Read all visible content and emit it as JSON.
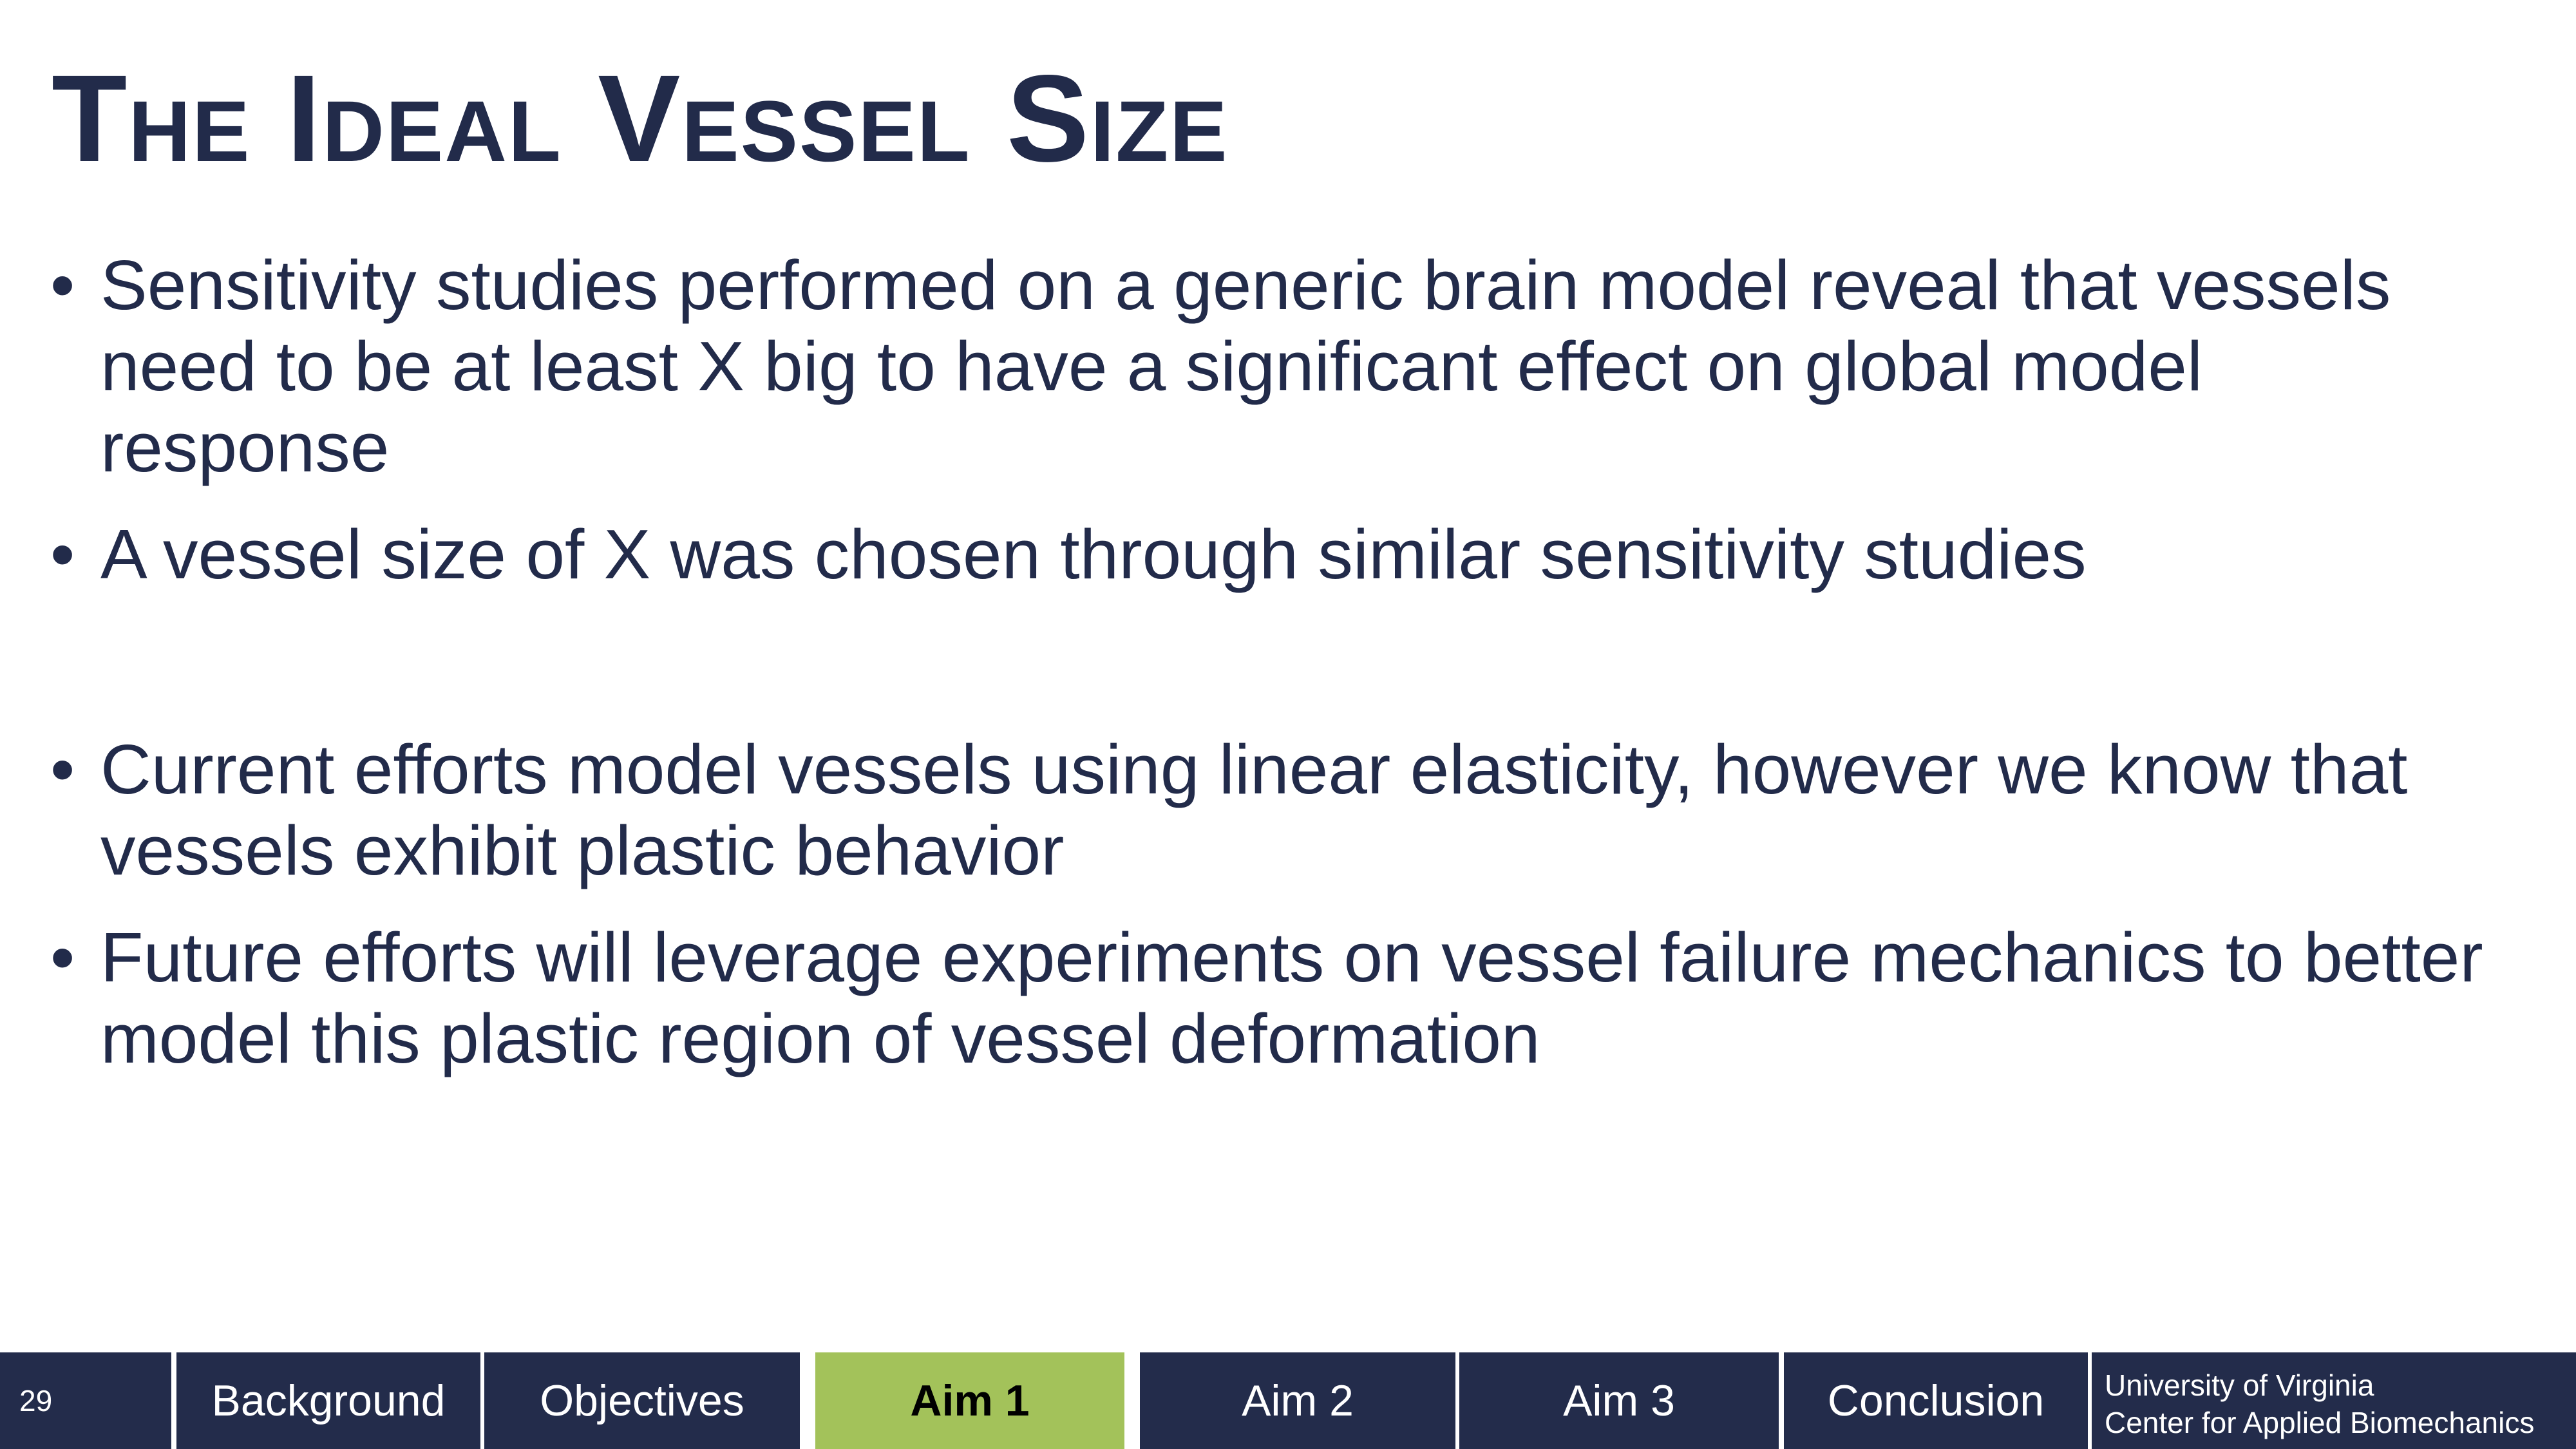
{
  "slide": {
    "title": "The Ideal Vessel Size",
    "bullet_char": "•",
    "bullets": [
      "Sensitivity studies performed on a generic brain model reveal that vessels need to be at least X big to have a significant effect on global model response",
      "A vessel size of X was chosen through similar sensitivity studies",
      "Current efforts model vessels using linear elasticity, however we know that vessels exhibit plastic behavior",
      "Future efforts will leverage experiments on vessel failure mechanics to better model this plastic region of vessel deformation"
    ]
  },
  "footer": {
    "slide_number": "29",
    "nav": [
      "Background",
      "Objectives",
      "Aim 1",
      "Aim 2",
      "Aim 3",
      "Conclusion"
    ],
    "active_nav": "Aim 1",
    "university_line1": "University of Virginia",
    "university_line2": "Center for Applied Biomechanics",
    "colors": {
      "navy": "#232c4b",
      "active_green": "#a3c25a",
      "text_navy": "#222b4a"
    }
  }
}
